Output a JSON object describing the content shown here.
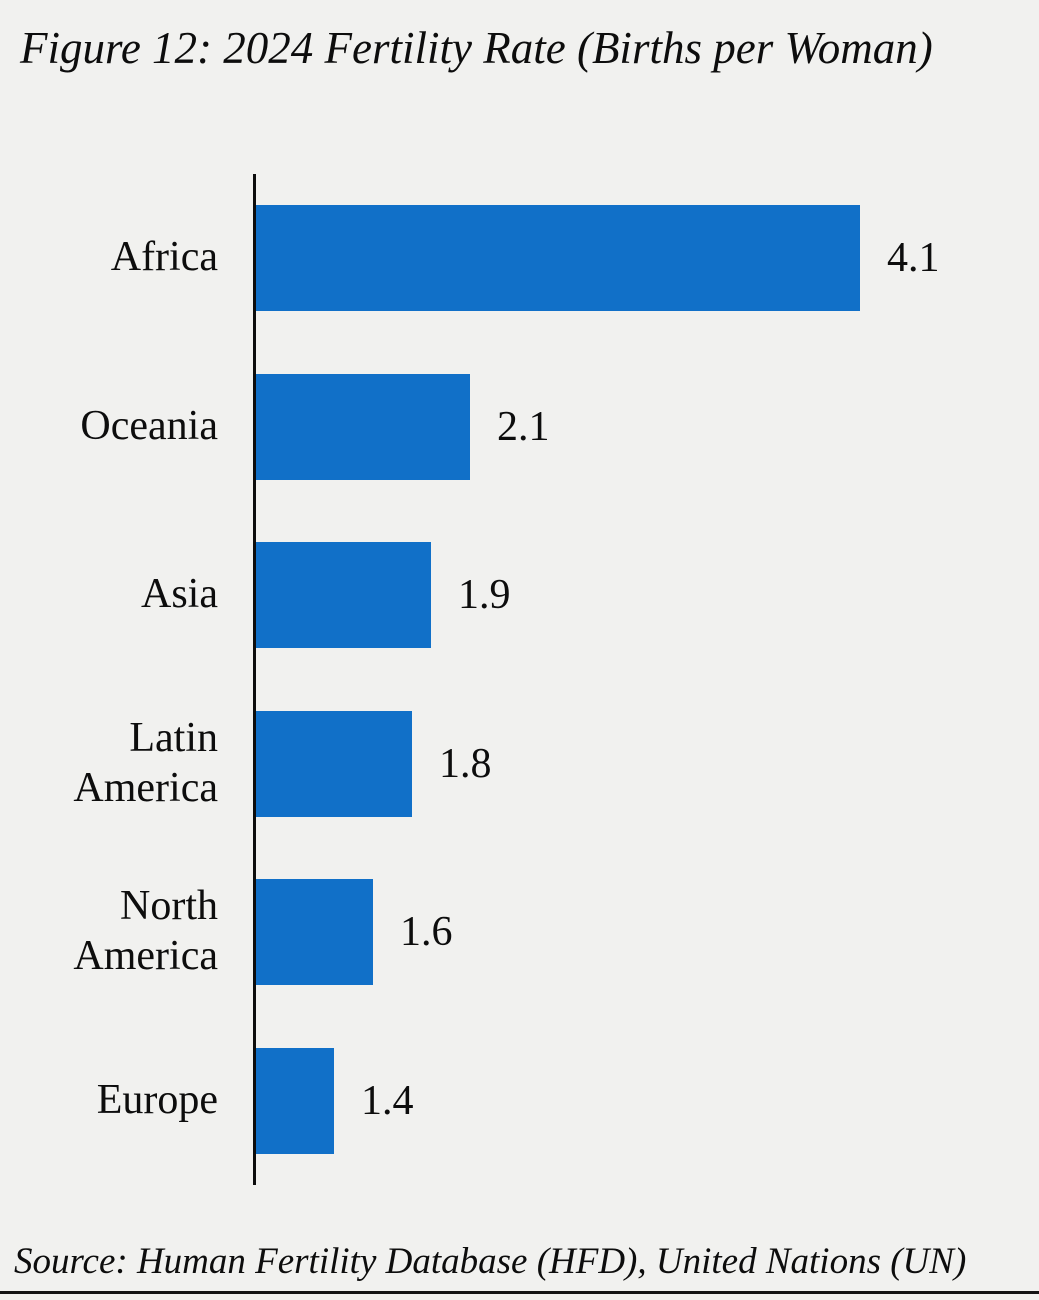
{
  "colors": {
    "background": "#f1f1ef",
    "bar": "#1170c8",
    "text": "#0d0d0d",
    "axis": "#0d0d0d",
    "rule": "#141414"
  },
  "chart_data": {
    "type": "bar",
    "orientation": "horizontal",
    "title": "Figure 12: 2024 Fertility Rate (Births per Woman)",
    "source": "Source: Human Fertility Database (HFD), United Nations (UN)",
    "categories": [
      "Africa",
      "Oceania",
      "Asia",
      "Latin America",
      "North America",
      "Europe"
    ],
    "values": [
      4.1,
      2.1,
      1.9,
      1.8,
      1.6,
      1.4
    ],
    "value_labels": [
      "4.1",
      "2.1",
      "1.9",
      "1.8",
      "1.6",
      "1.4"
    ],
    "xlabel": "",
    "ylabel": "",
    "xlim": [
      1,
      5
    ],
    "grid": false,
    "legend": false
  }
}
